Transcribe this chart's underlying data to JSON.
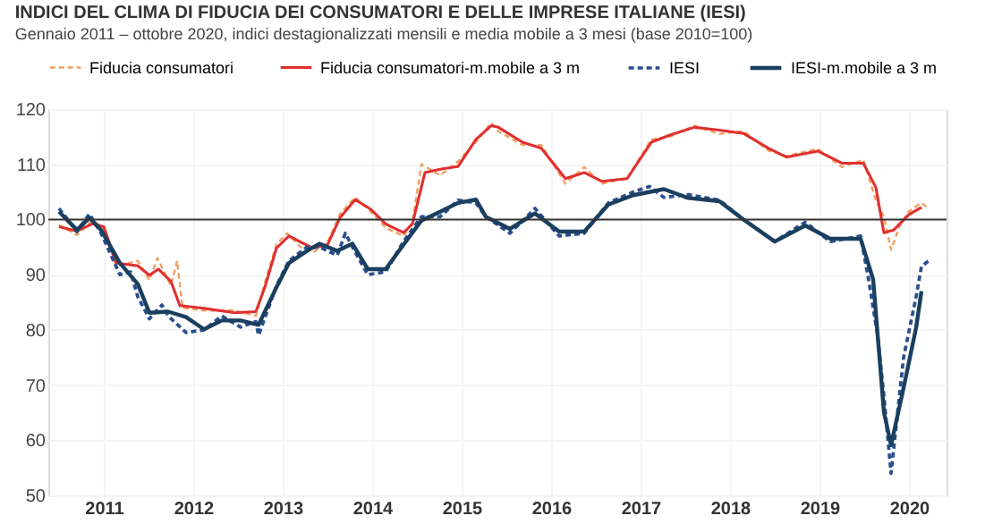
{
  "chart_data": {
    "type": "line",
    "title": "INDICI DEL CLIMA DI FIDUCIA DEI CONSUMATORI E DELLE IMPRESE ITALIANE (IESI)",
    "subtitle": "Gennaio 2011 – ottobre 2020, indici destagionalizzati mensili e media mobile a 3 mesi (base 2010=100)",
    "xlim": [
      2010.88,
      2020.92
    ],
    "xticks": [
      {
        "value": 2011.5,
        "label": "2011"
      },
      {
        "value": 2012.5,
        "label": "2012"
      },
      {
        "value": 2013.5,
        "label": "2013"
      },
      {
        "value": 2014.5,
        "label": "2014"
      },
      {
        "value": 2015.5,
        "label": "2015"
      },
      {
        "value": 2016.5,
        "label": "2016"
      },
      {
        "value": 2017.5,
        "label": "2017"
      },
      {
        "value": 2018.5,
        "label": "2018"
      },
      {
        "value": 2019.5,
        "label": "2019"
      },
      {
        "value": 2020.5,
        "label": "2020"
      }
    ],
    "ylim": [
      50,
      120
    ],
    "yticks": [
      50,
      60,
      70,
      80,
      90,
      100,
      110,
      120
    ],
    "grid": true,
    "legend": "top",
    "marker": "none",
    "ref_lines": [
      {
        "axis": "y",
        "value": 100,
        "label": null,
        "color": "#333333"
      }
    ],
    "series": [
      {
        "name": "Fiducia consumatori",
        "color": "#f0a060",
        "line_style": "dashed",
        "x": [
          2011.0,
          2011.2,
          2011.37,
          2011.5,
          2011.64,
          2011.88,
          2012.01,
          2012.1,
          2012.25,
          2012.32,
          2012.38,
          2012.62,
          2012.96,
          2013.2,
          2013.3,
          2013.43,
          2013.55,
          2013.7,
          2013.84,
          2014.0,
          2014.14,
          2014.31,
          2014.48,
          2014.65,
          2014.85,
          2014.95,
          2015.05,
          2015.26,
          2015.46,
          2015.66,
          2015.83,
          2015.91,
          2016.18,
          2016.39,
          2016.66,
          2016.87,
          2017.07,
          2017.35,
          2017.62,
          2017.83,
          2018.1,
          2018.38,
          2018.65,
          2018.93,
          2019.13,
          2019.48,
          2019.75,
          2019.99,
          2020.13,
          2020.22,
          2020.3,
          2020.4,
          2020.5,
          2020.64,
          2020.72
        ],
        "values": [
          99.0,
          97.2,
          99.8,
          98.5,
          91.5,
          92.5,
          89.0,
          93.0,
          88.0,
          92.5,
          84.0,
          83.5,
          83.5,
          82.5,
          88.5,
          95.5,
          97.5,
          95.0,
          94.0,
          95.8,
          101.0,
          104.0,
          101.5,
          98.5,
          97.0,
          99.5,
          110.0,
          108.0,
          110.5,
          114.0,
          117.5,
          116.0,
          113.5,
          113.5,
          106.5,
          109.5,
          106.5,
          107.5,
          114.5,
          115.0,
          117.0,
          115.5,
          116.0,
          112.5,
          111.5,
          112.8,
          109.5,
          110.8,
          103.5,
          100.5,
          94.5,
          99.0,
          101.5,
          103.0,
          102.0
        ]
      },
      {
        "name": "Fiducia consumatori-m.mobile a 3 m",
        "color": "#e03030",
        "line_style": "solid",
        "x": [
          2011.0,
          2011.2,
          2011.37,
          2011.5,
          2011.64,
          2011.88,
          2012.01,
          2012.11,
          2012.25,
          2012.35,
          2012.62,
          2012.96,
          2013.2,
          2013.3,
          2013.43,
          2013.57,
          2013.7,
          2013.84,
          2014.0,
          2014.14,
          2014.31,
          2014.48,
          2014.65,
          2014.85,
          2014.95,
          2015.09,
          2015.26,
          2015.46,
          2015.66,
          2015.83,
          2015.91,
          2016.18,
          2016.39,
          2016.66,
          2016.87,
          2017.07,
          2017.35,
          2017.62,
          2017.83,
          2018.1,
          2018.38,
          2018.65,
          2018.93,
          2019.13,
          2019.48,
          2019.75,
          2019.99,
          2020.13,
          2020.22,
          2020.33,
          2020.5,
          2020.64
        ],
        "values": [
          98.7,
          97.9,
          99.2,
          98.7,
          92.1,
          91.6,
          89.9,
          91.0,
          88.8,
          84.4,
          83.9,
          83.1,
          83.3,
          87.7,
          94.8,
          97.0,
          95.9,
          94.8,
          95.4,
          100.3,
          103.6,
          101.9,
          99.2,
          97.6,
          99.2,
          108.5,
          109.1,
          109.6,
          114.5,
          117.0,
          116.7,
          114.0,
          112.9,
          107.4,
          108.5,
          106.9,
          107.4,
          114.0,
          115.3,
          116.7,
          116.2,
          115.6,
          112.9,
          111.3,
          112.4,
          110.2,
          110.2,
          105.8,
          97.6,
          98.1,
          100.9,
          102.2
        ]
      },
      {
        "name": "IESI",
        "color": "#2a4f8f",
        "line_style": "dashed",
        "x": [
          2011.0,
          2011.2,
          2011.34,
          2011.47,
          2011.68,
          2011.8,
          2011.88,
          2012.01,
          2012.15,
          2012.22,
          2012.42,
          2012.62,
          2012.82,
          2013.03,
          2013.2,
          2013.23,
          2013.43,
          2013.57,
          2013.77,
          2013.91,
          2014.11,
          2014.2,
          2014.28,
          2014.45,
          2014.65,
          2014.85,
          2015.05,
          2015.26,
          2015.46,
          2015.66,
          2015.77,
          2016.04,
          2016.32,
          2016.59,
          2016.87,
          2017.14,
          2017.42,
          2017.6,
          2017.76,
          2018.03,
          2018.38,
          2018.65,
          2019.0,
          2019.34,
          2019.62,
          2019.96,
          2020.05,
          2020.15,
          2020.22,
          2020.3,
          2020.44,
          2020.58,
          2020.64,
          2020.72
        ],
        "values": [
          102.0,
          97.8,
          101.0,
          97.5,
          90.0,
          90.5,
          86.0,
          82.0,
          84.5,
          82.5,
          79.5,
          80.0,
          82.5,
          80.5,
          81.5,
          79.0,
          88.0,
          92.5,
          95.0,
          95.0,
          93.5,
          97.5,
          95.0,
          90.0,
          90.5,
          96.0,
          100.5,
          100.5,
          103.5,
          103.0,
          100.5,
          97.5,
          102.0,
          97.0,
          97.5,
          103.0,
          105.0,
          106.0,
          104.0,
          104.5,
          103.5,
          100.0,
          96.0,
          99.5,
          96.0,
          97.0,
          89.0,
          79.0,
          68.0,
          54.0,
          75.0,
          86.0,
          91.5,
          92.5
        ]
      },
      {
        "name": "IESI-m.mobile a 3 m",
        "color": "#1a3f5f",
        "line_style": "solid",
        "x": [
          2011.0,
          2011.2,
          2011.34,
          2011.47,
          2011.68,
          2011.88,
          2012.01,
          2012.22,
          2012.42,
          2012.62,
          2012.82,
          2013.03,
          2013.23,
          2013.43,
          2013.57,
          2013.77,
          2013.91,
          2014.11,
          2014.28,
          2014.45,
          2014.65,
          2014.85,
          2015.05,
          2015.26,
          2015.46,
          2015.66,
          2015.77,
          2016.04,
          2016.32,
          2016.59,
          2016.87,
          2017.14,
          2017.42,
          2017.76,
          2018.03,
          2018.38,
          2018.65,
          2019.0,
          2019.34,
          2019.62,
          2019.96,
          2020.1,
          2020.22,
          2020.3,
          2020.44,
          2020.58,
          2020.64
        ],
        "values": [
          101.4,
          98.1,
          100.3,
          98.1,
          92.1,
          88.3,
          83.1,
          83.3,
          82.3,
          80.1,
          81.7,
          81.7,
          80.9,
          87.7,
          92.1,
          94.3,
          95.6,
          94.3,
          95.6,
          91.0,
          91.0,
          95.4,
          99.8,
          101.4,
          103.0,
          103.6,
          100.5,
          98.3,
          101.1,
          97.8,
          97.8,
          102.7,
          104.4,
          105.5,
          103.9,
          103.3,
          100.0,
          96.0,
          98.9,
          96.5,
          96.5,
          89.1,
          65.1,
          59.1,
          69.5,
          80.4,
          87.0
        ]
      }
    ]
  }
}
